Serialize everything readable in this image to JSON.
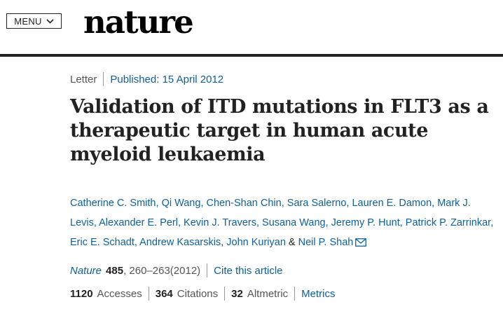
{
  "header": {
    "menu_label": "MENU",
    "logo_text": "nature"
  },
  "article": {
    "type": "Letter",
    "published": "Published: 15 April 2012",
    "title": "Validation of ITD mutations in FLT3 as a therapeutic target in human acute myeloid leukaemia",
    "authors": [
      "Catherine C. Smith",
      "Qi Wang",
      "Chen-Shan Chin",
      "Sara Salerno",
      "Lauren E. Damon",
      "Mark J. Levis",
      "Alexander E. Perl",
      "Kevin J. Travers",
      "Susana Wang",
      "Jeremy P. Hunt",
      "Patrick P. Zarrinkar",
      "Eric E. Schadt",
      "Andrew Kasarskis",
      "John Kuriyan"
    ],
    "last_author": "Neil P. Shah",
    "amp": "&",
    "comma": ",",
    "journal": "Nature",
    "volume": "485",
    "pages": ", 260–263(2012)",
    "cite_label": "Cite this article"
  },
  "metrics": {
    "accesses_value": "1120",
    "accesses_label": "Accesses",
    "citations_value": "364",
    "citations_label": "Citations",
    "altmetric_value": "32",
    "altmetric_label": "Altmetric",
    "metrics_link": "Metrics"
  },
  "colors": {
    "link": "#0f5f99",
    "text": "#222222",
    "muted": "#555555",
    "rule": "#222222"
  },
  "icons": {
    "menu_chevron": "chevron-down-icon",
    "email": "mail-icon"
  }
}
